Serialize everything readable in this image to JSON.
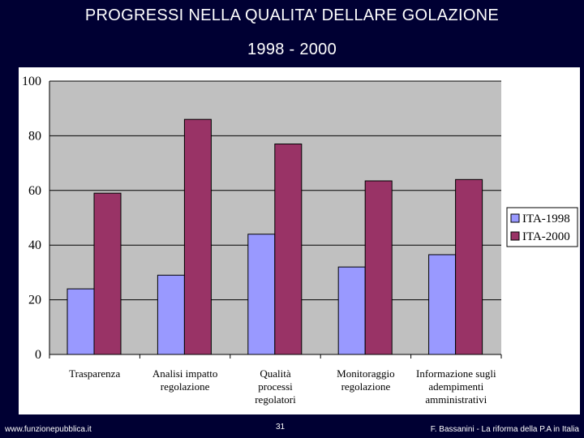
{
  "slide": {
    "title_line1": "PROGRESSI NELLA QUALITA’ DELLARE GOLAZIONE",
    "title_line2": "1998 - 2000",
    "footer_left": "www.funzionepubblica.it",
    "page_number": "31",
    "footer_right": "F. Bassanini - La riforma della P.A in Italia"
  },
  "colors": {
    "background": "#000033",
    "plot_area": "#c0c0c0",
    "series_1998": "#9999ff",
    "series_2000": "#993366"
  },
  "chart_data": {
    "type": "bar",
    "title": "",
    "xlabel": "",
    "ylabel": "",
    "categories": [
      [
        "Trasparenza"
      ],
      [
        "Analisi impatto",
        "regolazione"
      ],
      [
        "Qualità",
        "processi",
        "regolatori"
      ],
      [
        "Monitoraggio",
        "regolazione"
      ],
      [
        "Informazione sugli",
        "adempimenti",
        "amministrativi"
      ]
    ],
    "series": [
      {
        "name": "ITA-1998",
        "values": [
          24,
          29,
          44,
          32,
          36.5
        ]
      },
      {
        "name": "ITA-2000",
        "values": [
          59,
          86,
          77,
          63.5,
          64
        ]
      }
    ],
    "ylim": [
      0,
      100
    ],
    "yticks": [
      0,
      20,
      40,
      60,
      80,
      100
    ],
    "grid": true,
    "legend_position": "right"
  }
}
